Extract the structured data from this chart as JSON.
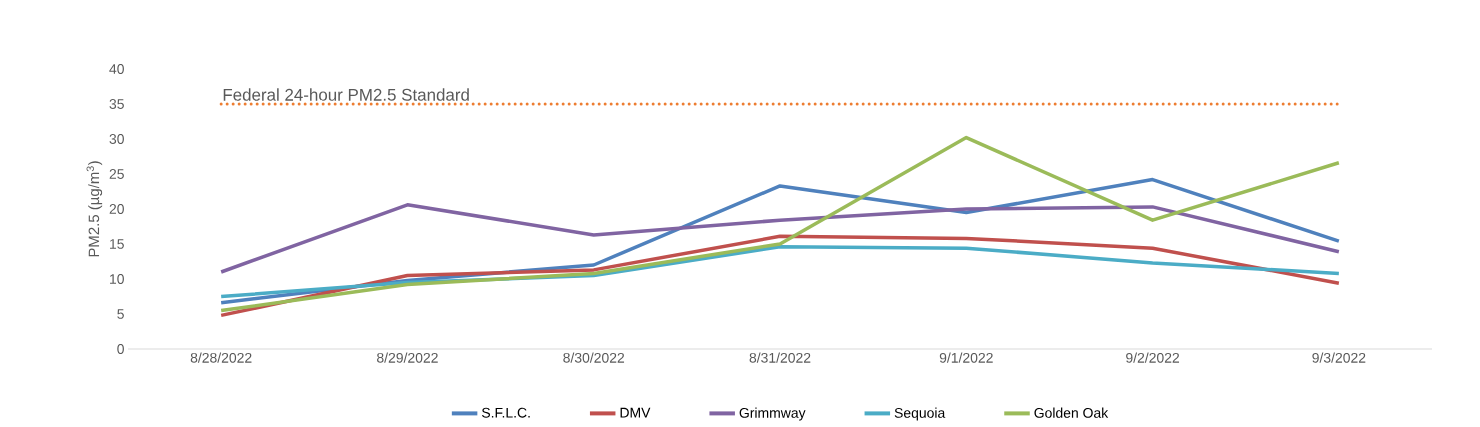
{
  "chart_data": {
    "type": "line",
    "ylabel": "PM2.5 (µg/m$^{3}$)",
    "categories": [
      "8/28/2022",
      "8/29/2022",
      "8/30/2022",
      "8/31/2022",
      "9/1/2022",
      "9/2/2022",
      "9/3/2022"
    ],
    "series": [
      {
        "name": "S.F.L.C.",
        "color": "#4f81bd",
        "values": [
          6.6,
          9.8,
          12,
          23.3,
          19.5,
          24.2,
          15.4
        ]
      },
      {
        "name": "DMV",
        "color": "#c0504d",
        "values": [
          4.8,
          10.5,
          11.3,
          16.1,
          15.8,
          14.4,
          9.4
        ]
      },
      {
        "name": "Grimmway",
        "color": "#8064a2",
        "values": [
          11,
          20.6,
          16.3,
          18.4,
          20,
          20.3,
          13.9
        ]
      },
      {
        "name": "Sequoia",
        "color": "#4bacc6",
        "values": [
          7.5,
          9.5,
          10.5,
          14.6,
          14.4,
          12.3,
          10.8
        ]
      },
      {
        "name": "Golden Oak",
        "color": "#9bbb59",
        "values": [
          5.5,
          9.2,
          10.8,
          15,
          30.2,
          18.4,
          26.6
        ]
      }
    ],
    "ylim": [
      0,
      40
    ],
    "yticks": [
      0,
      5,
      10,
      15,
      20,
      25,
      30,
      35,
      40
    ],
    "ref_lines": [
      {
        "axis": "y",
        "value": 35,
        "label": "Federal 24-hour PM2.5 Standard",
        "color": "#ed7d31",
        "line_style": "dotted"
      }
    ],
    "legend": "bottom",
    "line_style": "solid"
  }
}
